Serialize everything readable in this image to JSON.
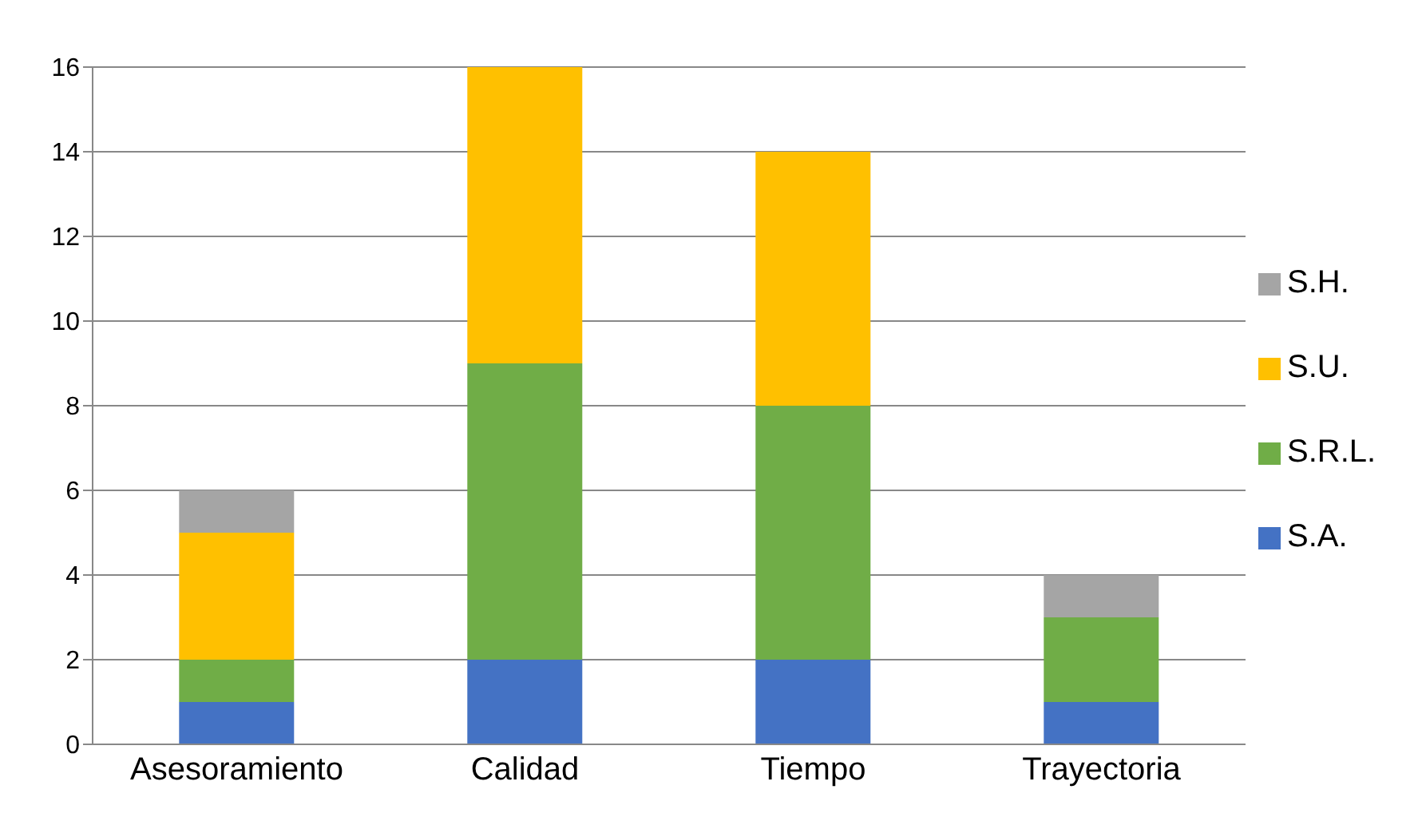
{
  "chart_data": {
    "type": "bar",
    "stacked": true,
    "categories": [
      "Asesoramiento",
      "Calidad",
      "Tiempo",
      "Trayectoria"
    ],
    "series": [
      {
        "name": "S.A.",
        "color": "#4472c4",
        "values": [
          1,
          2,
          2,
          1
        ]
      },
      {
        "name": "S.R.L.",
        "color": "#70ad47",
        "values": [
          1,
          7,
          6,
          2
        ]
      },
      {
        "name": "S.U.",
        "color": "#ffc000",
        "values": [
          3,
          7,
          6,
          0
        ]
      },
      {
        "name": "S.H.",
        "color": "#a5a5a5",
        "values": [
          1,
          0,
          0,
          1
        ]
      }
    ],
    "ylim": [
      0,
      16
    ],
    "yticks": [
      0,
      2,
      4,
      6,
      8,
      10,
      12,
      14,
      16
    ],
    "grid": "y",
    "legend": "right"
  }
}
